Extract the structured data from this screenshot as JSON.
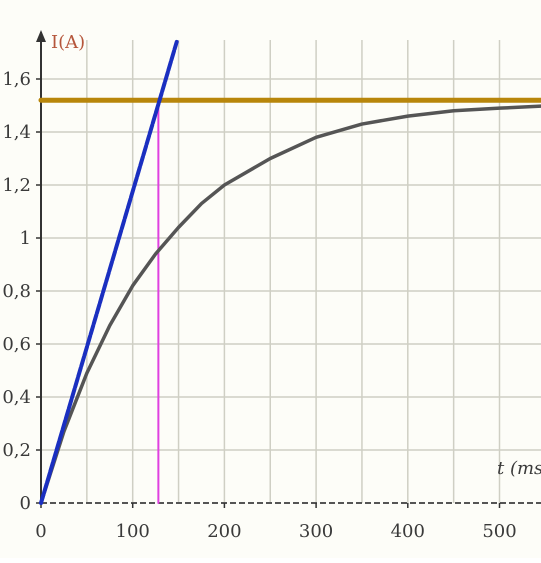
{
  "chart_data": {
    "type": "line",
    "title": "",
    "ylabel": "I(A)",
    "xlabel": "t (ms)",
    "xlim": [
      0,
      560
    ],
    "ylim": [
      0,
      1.7
    ],
    "grid": true,
    "x_ticks": [
      0,
      100,
      200,
      300,
      400,
      500
    ],
    "x_tick_labels": [
      "0",
      "100",
      "200",
      "300",
      "400",
      "500"
    ],
    "y_ticks": [
      0,
      0.2,
      0.4,
      0.6,
      0.8,
      1,
      1.2,
      1.4,
      1.6
    ],
    "y_tick_labels": [
      "0",
      "0,2",
      "0,4",
      "0,6",
      "0,8",
      "1",
      "1,2",
      "1,4",
      "1,6"
    ],
    "series": [
      {
        "role": "current curve",
        "color": "#555555",
        "x": [
          0,
          25,
          50,
          75,
          100,
          125,
          150,
          175,
          200,
          250,
          300,
          350,
          400,
          450,
          500,
          560
        ],
        "y": [
          0,
          0.27,
          0.49,
          0.67,
          0.82,
          0.94,
          1.04,
          1.13,
          1.2,
          1.3,
          1.38,
          1.43,
          1.46,
          1.48,
          1.49,
          1.5
        ]
      },
      {
        "role": "tangent at origin",
        "color": "#1a2fc0",
        "x": [
          0,
          148
        ],
        "y": [
          0,
          1.74
        ]
      },
      {
        "role": "asymptote",
        "color": "#b8860b",
        "x": [
          0,
          560
        ],
        "y": [
          1.52,
          1.52
        ]
      },
      {
        "role": "time constant marker",
        "color": "#e040e0",
        "x": [
          128,
          128
        ],
        "y": [
          0,
          1.52
        ]
      }
    ]
  }
}
